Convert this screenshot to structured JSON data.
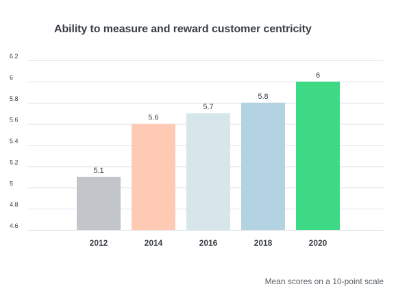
{
  "chart_data": {
    "type": "bar",
    "title": "Ability to measure and reward customer centricity",
    "xlabel": "",
    "ylabel": "",
    "categories": [
      "2012",
      "2014",
      "2016",
      "2018",
      "2020"
    ],
    "values": [
      5.1,
      5.6,
      5.7,
      5.8,
      6
    ],
    "value_labels": [
      "5.1",
      "5.6",
      "5.7",
      "5.8",
      "6"
    ],
    "colors": [
      "#c2c6ca",
      "#fecab4",
      "#d7e6ea",
      "#b3d2e2",
      "#3dd985"
    ],
    "ylim": [
      4.6,
      6.2
    ],
    "yticks": [
      4.6,
      4.8,
      5,
      5.2,
      5.4,
      5.6,
      5.8,
      6,
      6.2
    ],
    "ytick_labels": [
      "4.6",
      "4.8",
      "5",
      "5.2",
      "5.4",
      "5.6",
      "5.8",
      "6",
      "6.2"
    ],
    "grid": true,
    "gridline_color": "#dfe2e5",
    "footnote": "Mean scores on a 10-point scale"
  }
}
